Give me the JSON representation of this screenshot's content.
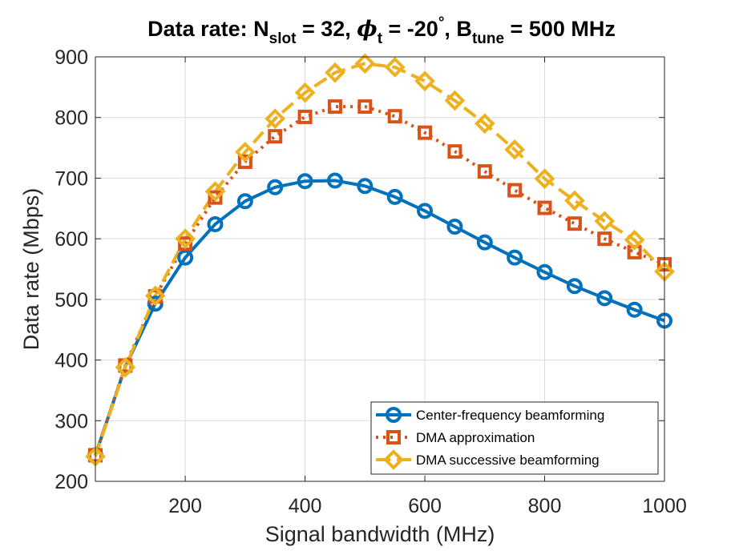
{
  "chart_data": {
    "type": "line",
    "title": {
      "prefix": "Data rate: N",
      "sub1": "slot",
      "mid1": " = 32, ",
      "phi": "ϕ",
      "sub2": "t",
      "mid2": " = -20",
      "degree": "°",
      "mid3": ", B",
      "sub3": "tune",
      "suffix": " = 500 MHz"
    },
    "xlabel": "Signal bandwidth (MHz)",
    "ylabel": "Data rate (Mbps)",
    "xlim": [
      50,
      1000
    ],
    "ylim": [
      200,
      900
    ],
    "xticks": [
      200,
      400,
      600,
      800,
      1000
    ],
    "yticks": [
      200,
      300,
      400,
      500,
      600,
      700,
      800,
      900
    ],
    "grid": true,
    "legend_position": "bottom-right",
    "x": [
      50,
      100,
      150,
      200,
      250,
      300,
      350,
      400,
      450,
      500,
      550,
      600,
      650,
      700,
      750,
      800,
      850,
      900,
      950,
      1000
    ],
    "series": [
      {
        "name": "Center-frequency beamforming",
        "color": "#0072BD",
        "line_style": "solid",
        "marker": "circle",
        "values": [
          243,
          389,
          493,
          569,
          624,
          662,
          685,
          695,
          696,
          687,
          669,
          646,
          620,
          594,
          569,
          545,
          522,
          502,
          483,
          465
        ]
      },
      {
        "name": "DMA approximation",
        "color": "#D95319",
        "line_style": "dotted",
        "marker": "square",
        "values": [
          243,
          391,
          505,
          592,
          668,
          727,
          769,
          801,
          818,
          818,
          802,
          775,
          744,
          711,
          680,
          651,
          625,
          600,
          578,
          558
        ]
      },
      {
        "name": "DMA successive beamforming",
        "color": "#EDB120",
        "line_style": "dashed",
        "marker": "diamond",
        "values": [
          241,
          388,
          506,
          600,
          678,
          743,
          798,
          841,
          874,
          889,
          883,
          860,
          828,
          790,
          747,
          699,
          663,
          629,
          598,
          546
        ]
      }
    ]
  }
}
